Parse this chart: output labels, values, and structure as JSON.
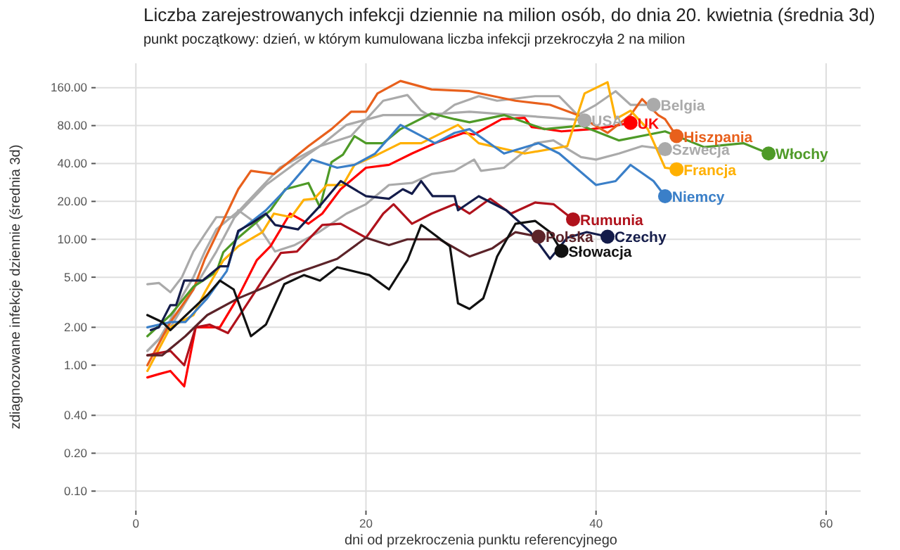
{
  "chart_data": {
    "type": "line",
    "title": "Liczba zarejestrowanych infekcji dziennie na milion osób, do dnia 20. kwietnia (średnia 3d)",
    "subtitle": "punkt początkowy: dzień, w którym kumulowana liczba infekcji przekroczyła 2 na milion",
    "xlabel": "dni od przekroczenia punktu referencyjnego",
    "ylabel": "zdiagnozowane infekcje dziennie (średnia 3d)",
    "log": true,
    "grid": true,
    "legend": false,
    "xlim": [
      -3.5,
      63
    ],
    "xticks": [
      0,
      20,
      40,
      60
    ],
    "ylim": [
      0.07,
      250
    ],
    "yticks": [
      {
        "value": 0.1,
        "label": "0.10"
      },
      {
        "value": 0.2,
        "label": "0.20"
      },
      {
        "value": 0.4,
        "label": "0.40"
      },
      {
        "value": 1,
        "label": "1.00"
      },
      {
        "value": 2,
        "label": "2.00"
      },
      {
        "value": 5,
        "label": "5.00"
      },
      {
        "value": 10,
        "label": "10.00"
      },
      {
        "value": 20,
        "label": "20.00"
      },
      {
        "value": 40,
        "label": "40.00"
      },
      {
        "value": 80,
        "label": "80.00"
      },
      {
        "value": 160,
        "label": "160.00"
      }
    ],
    "series": [
      {
        "name": "Belgia",
        "color": "#aaaaaa",
        "x": [
          1,
          2,
          3,
          4,
          5,
          6,
          7,
          8.6,
          11.3,
          14,
          16,
          18.7,
          21.5,
          23.6,
          24.8,
          26,
          27.7,
          29.8,
          31.4,
          34.7,
          36.8,
          38.4,
          40,
          41.7,
          43,
          45
        ],
        "values": [
          4.4,
          4.5,
          3.8,
          5,
          8,
          11,
          15,
          15,
          27,
          41,
          55,
          66,
          126,
          140,
          105,
          90,
          117,
          137,
          126,
          137,
          137,
          97,
          117,
          150,
          117,
          117
        ]
      },
      {
        "name": "USA",
        "color": "#aaaaaa",
        "x": [
          1,
          2,
          3,
          4,
          5,
          6,
          7,
          9,
          12.5,
          16,
          18.3,
          21.5,
          24.8,
          29,
          33,
          36.3,
          39
        ],
        "values": [
          1.3,
          1.6,
          2.3,
          3.5,
          5,
          8,
          12,
          17,
          37,
          55,
          81,
          97,
          97,
          103,
          97,
          92,
          88
        ]
      },
      {
        "name": "Szwecja",
        "color": "#aaaaaa",
        "x": [
          1,
          3,
          5,
          7,
          8.9,
          10.5,
          12.1,
          13.8,
          15.9,
          18.3,
          20,
          22,
          24,
          25.7,
          27.7,
          29.4,
          30,
          32,
          34.7,
          36.3,
          38.7,
          40,
          42,
          44,
          46
        ],
        "values": [
          1.3,
          2,
          4,
          8,
          17,
          13.3,
          8,
          9,
          11.4,
          16,
          19,
          27,
          28,
          33,
          35,
          43,
          35,
          37,
          58,
          61,
          45,
          43,
          48,
          55,
          52
        ]
      },
      {
        "name": "UK",
        "color": "#ff0000",
        "x": [
          1,
          2,
          3,
          4.2,
          5.2,
          7.3,
          8.9,
          10.5,
          11.7,
          13.4,
          15,
          16.2,
          17.8,
          20,
          22,
          24,
          26,
          28.5,
          29.4,
          31.8,
          33.8,
          34.4,
          37,
          39.6,
          41,
          43
        ],
        "values": [
          0.8,
          0.85,
          0.9,
          0.68,
          2,
          2,
          3.5,
          6.8,
          8.8,
          16,
          13.3,
          16,
          25,
          37,
          39,
          48,
          58,
          70,
          68,
          90,
          92,
          78,
          72,
          75,
          78,
          84
        ]
      },
      {
        "name": "Hiszpania",
        "color": "#e8601c",
        "x": [
          1,
          3,
          5,
          6,
          8.9,
          10,
          12,
          15,
          17,
          18.7,
          20,
          21,
          23,
          25.7,
          29,
          33,
          36,
          38.4,
          41,
          43,
          44,
          45.4,
          46,
          47
        ],
        "values": [
          1,
          2.2,
          4,
          7,
          25,
          35,
          33,
          55,
          75,
          103,
          103,
          144,
          181,
          155,
          150,
          126,
          117,
          97,
          70,
          97,
          130,
          97,
          90,
          66
        ]
      },
      {
        "name": "Włochy",
        "color": "#4e9a27",
        "x": [
          1,
          3,
          5,
          7,
          7.6,
          8.9,
          11.7,
          13,
          15,
          16,
          17,
          18,
          19,
          20,
          21.5,
          23,
          25.7,
          27.7,
          29,
          32,
          35.5,
          38.7,
          42,
          46,
          49.4,
          52.8,
          55
        ],
        "values": [
          1.7,
          2.5,
          4.2,
          5.5,
          7.9,
          10.3,
          17,
          25,
          28,
          18,
          41,
          47,
          66,
          58,
          58,
          75,
          100,
          90,
          85,
          97,
          75,
          80,
          61,
          72,
          54,
          58,
          48
        ]
      },
      {
        "name": "Francja",
        "color": "#ffb000",
        "x": [
          1,
          3,
          5,
          6,
          7.6,
          8.9,
          11,
          12,
          13.5,
          14.6,
          15.5,
          16.6,
          18,
          19,
          21,
          23,
          24.8,
          28,
          29.8,
          33.8,
          37.5,
          39,
          41,
          41.7,
          43,
          44.5,
          46,
          47
        ],
        "values": [
          0.9,
          2,
          2.5,
          3.8,
          6.8,
          8.8,
          11.4,
          16,
          15,
          20.6,
          21,
          27,
          27,
          39,
          47,
          58,
          58,
          81,
          58,
          48,
          55,
          144,
          177,
          90,
          105,
          75,
          37,
          36
        ]
      },
      {
        "name": "Niemcy",
        "color": "#3a7fc8",
        "x": [
          1,
          3,
          4.3,
          6.2,
          7.9,
          8.9,
          11.3,
          13.4,
          15.3,
          17.5,
          19,
          20.8,
          23,
          26,
          27.7,
          29,
          32,
          35,
          36.8,
          40,
          41.7,
          43,
          45,
          46
        ],
        "values": [
          2,
          2.2,
          2.2,
          3.4,
          5.6,
          11.4,
          17,
          27,
          43,
          37,
          39,
          48,
          81,
          58,
          70,
          75,
          48,
          58,
          48,
          27,
          29,
          39,
          29,
          22
        ]
      },
      {
        "name": "Rumunia",
        "color": "#b0121c",
        "x": [
          1,
          3,
          4.2,
          5.2,
          6.4,
          8,
          9.8,
          11.3,
          12.6,
          14,
          16.2,
          17.8,
          20,
          21.5,
          22.4,
          24,
          25.7,
          27.7,
          29,
          30.8,
          32.6,
          34.7,
          36.3,
          38
        ],
        "values": [
          1.2,
          1.3,
          1,
          2,
          2.1,
          1.8,
          3.2,
          5.2,
          7.8,
          8,
          13,
          13.3,
          10.3,
          16,
          19,
          13.3,
          16,
          19,
          16,
          21,
          16,
          19.6,
          19,
          14.4
        ]
      },
      {
        "name": "Polska",
        "color": "#5c2329",
        "x": [
          1,
          2.3,
          4.3,
          6.2,
          8.9,
          11.3,
          13.4,
          15.4,
          17.5,
          20,
          22,
          23.6,
          26.4,
          29,
          31,
          33,
          35
        ],
        "values": [
          1.2,
          1.2,
          1.7,
          2.5,
          3.4,
          4.2,
          5.2,
          6,
          7,
          10.3,
          9,
          10,
          10,
          7.3,
          8.5,
          11.4,
          10.5
        ]
      },
      {
        "name": "Czechy",
        "color": "#141c4a",
        "x": [
          1.3,
          2,
          3,
          3.5,
          4.2,
          5.8,
          7.3,
          8,
          8.9,
          10,
          11.3,
          12.1,
          14.1,
          15.9,
          17.8,
          20,
          22,
          23.2,
          24,
          24.8,
          25.8,
          27.7,
          28,
          29.8,
          32.2,
          34.3,
          36,
          37.5,
          39.2,
          41
        ],
        "values": [
          1.9,
          2,
          3,
          3,
          4.7,
          4.7,
          6.1,
          6.1,
          11.7,
          13.3,
          16,
          13,
          12,
          18,
          29,
          22,
          21,
          25,
          23,
          29,
          22,
          22,
          17,
          22,
          17,
          11.4,
          7,
          10.3,
          11.4,
          10.5
        ]
      },
      {
        "name": "Słowacja",
        "color": "#111111",
        "x": [
          1,
          2.3,
          3,
          6.2,
          7.3,
          8.5,
          10,
          11.3,
          12.9,
          14.6,
          16,
          17.5,
          20.3,
          22,
          23.6,
          24.8,
          25.2,
          27.3,
          28,
          29,
          30.2,
          31.4,
          33,
          34.7,
          36,
          37
        ],
        "values": [
          2.5,
          2.2,
          1.9,
          3.6,
          4.7,
          4,
          1.7,
          2.1,
          4.4,
          5.2,
          4.7,
          6,
          5.2,
          4,
          6.8,
          13,
          12.3,
          8.8,
          3.1,
          2.8,
          3.4,
          7.3,
          13.3,
          14,
          11.4,
          8.1
        ]
      }
    ]
  }
}
